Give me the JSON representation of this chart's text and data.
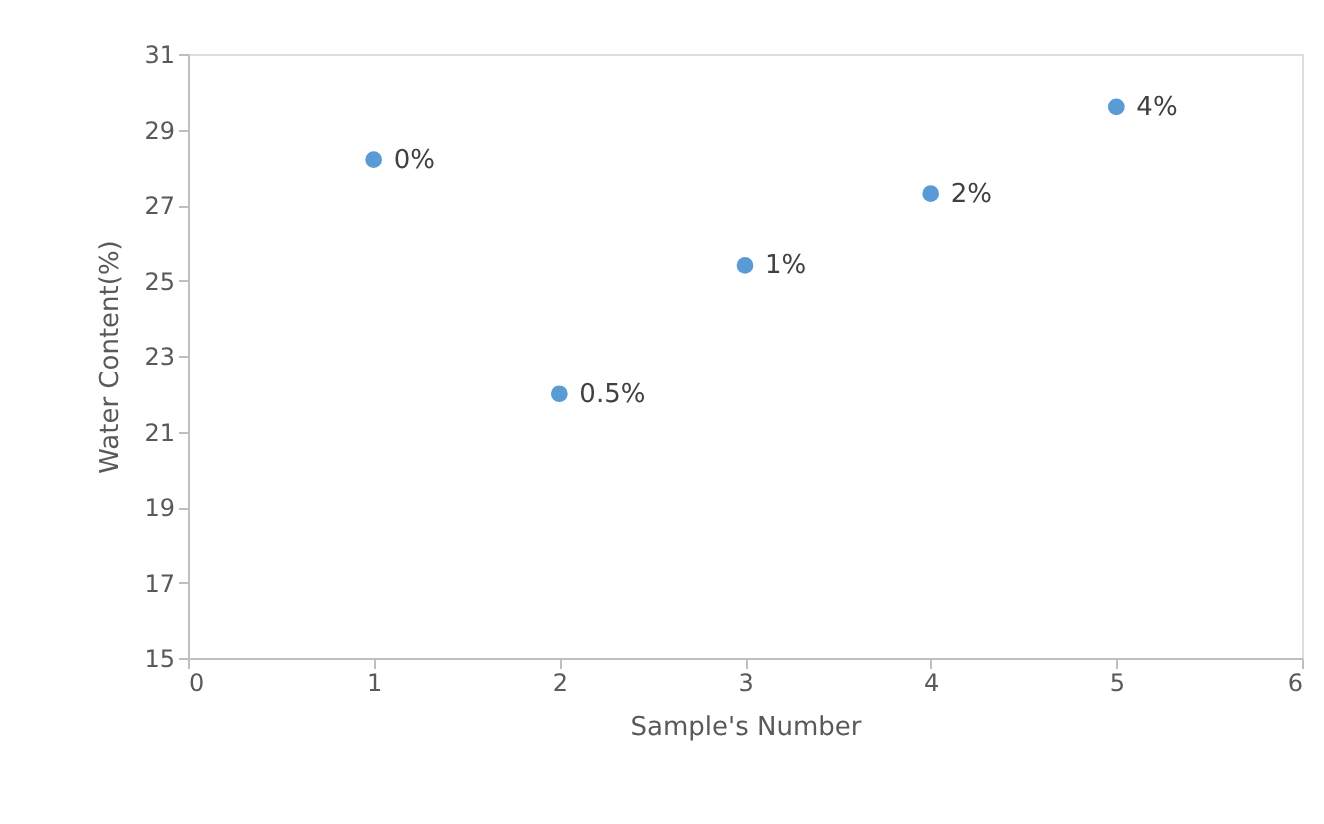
{
  "chart_data": {
    "type": "scatter",
    "xlabel": "Sample's Number",
    "ylabel": "Water Content(%)",
    "x": [
      1,
      2,
      3,
      4,
      5
    ],
    "series": [
      {
        "color": "#5b9bd5",
        "values": [
          28.2,
          22.0,
          25.4,
          27.3,
          29.6
        ]
      }
    ],
    "xlim": [
      0,
      6
    ],
    "xticks": [
      0,
      1,
      2,
      3,
      4,
      5,
      6
    ],
    "ylim": [
      15,
      31
    ],
    "yticks": [
      15,
      17,
      19,
      21,
      23,
      25,
      27,
      29,
      31
    ],
    "grid": false,
    "marker": "circle",
    "annotations": [
      {
        "text": "0%",
        "x": 1,
        "y": 28.2
      },
      {
        "text": "0.5%",
        "x": 2,
        "y": 22.0
      },
      {
        "text": "1%",
        "x": 3,
        "y": 25.4
      },
      {
        "text": "2%",
        "x": 4,
        "y": 27.3
      },
      {
        "text": "4%",
        "x": 5,
        "y": 29.6
      }
    ]
  }
}
